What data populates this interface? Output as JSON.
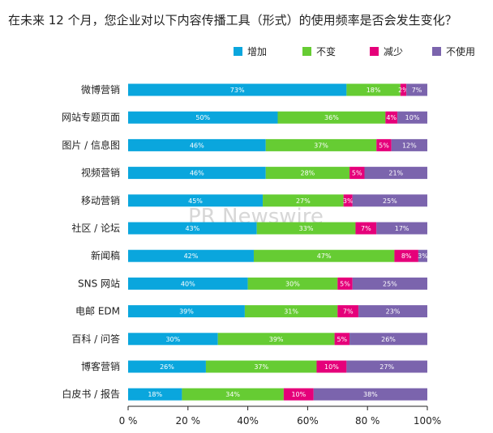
{
  "chart_data": {
    "type": "bar",
    "orientation": "horizontal",
    "stacked": true,
    "title": "在未来 12 个月，您企业对以下内容传播工具（形式）的使用频率是否会发生变化？",
    "categories": [
      "微博营销",
      "网站专题页面",
      "图片 / 信息图",
      "视频营销",
      "移动营销",
      "社区 / 论坛",
      "新闻稿",
      "SNS 网站",
      "电邮 EDM",
      "百科 / 问答",
      "博客营销",
      "白皮书 / 报告"
    ],
    "series": [
      {
        "name": "增加",
        "color": "#0aa6dd",
        "values": [
          73,
          50,
          46,
          46,
          45,
          43,
          42,
          40,
          39,
          30,
          26,
          18
        ]
      },
      {
        "name": "不变",
        "color": "#66cc33",
        "values": [
          18,
          36,
          37,
          28,
          27,
          33,
          47,
          30,
          31,
          39,
          37,
          34
        ]
      },
      {
        "name": "减少",
        "color": "#e5007a",
        "values": [
          2,
          4,
          5,
          5,
          3,
          7,
          8,
          5,
          7,
          5,
          10,
          10
        ]
      },
      {
        "name": "不使用",
        "color": "#7b64ad",
        "values": [
          7,
          10,
          12,
          21,
          25,
          17,
          3,
          25,
          23,
          26,
          27,
          38
        ]
      }
    ],
    "xlim": [
      0,
      100
    ],
    "xticks": [
      "0 %",
      "20 %",
      "40%",
      "60%",
      "80 %",
      "100%"
    ],
    "xtick_values": [
      0,
      20,
      40,
      60,
      80,
      100
    ],
    "legend_position": "top-right",
    "watermark": "PR Newswire"
  }
}
